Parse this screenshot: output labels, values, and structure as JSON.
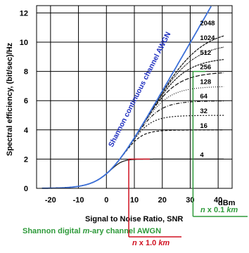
{
  "chart_data": {
    "type": "line",
    "xlabel": "Signal to Noise Ratio, SNR",
    "x_unit": "dBm",
    "ylabel": "Spectral efficiency,  (bit/sec)/Hz",
    "xlim": [
      -25,
      45
    ],
    "ylim": [
      0,
      12.5
    ],
    "x_ticks": [
      "-20",
      "-10",
      "0",
      "10",
      "20",
      "30",
      "40"
    ],
    "y_ticks": [
      "0",
      "2",
      "4",
      "6",
      "8",
      "10",
      "12"
    ],
    "grid": true,
    "shannon_curve": {
      "name": "Shannon continuous channel AWGN",
      "color": "#3b6fd8"
    },
    "mary_curves": {
      "name_parts": [
        "Shannon ",
        "digital ",
        "m",
        "-ary channel AWGN"
      ],
      "levels": [
        4,
        16,
        32,
        64,
        128,
        256,
        512,
        1024,
        2048
      ],
      "labels": [
        "4",
        "16",
        "32",
        "64",
        "128",
        "256",
        "512",
        "1024",
        "2048"
      ]
    },
    "annotations": [
      {
        "id": "ann_01",
        "x": 8,
        "y": 2,
        "color": "#d01020",
        "text_parts": [
          "n",
          " x 1.0 ",
          "km"
        ]
      },
      {
        "id": "ann_01b",
        "x": 31,
        "y": 8,
        "color": "#2e9a3a",
        "text_parts": [
          "n",
          " x 0.1 ",
          "km"
        ]
      }
    ]
  }
}
